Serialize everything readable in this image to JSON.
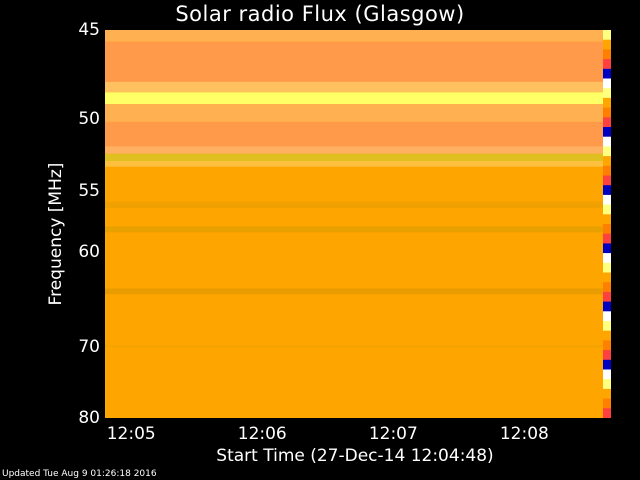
{
  "chart_data": {
    "type": "heatmap",
    "title": "Solar radio Flux (Glasgow)",
    "ylabel": "Frequency [MHz]",
    "xlabel": "Start Time (27-Dec-14 12:04:48)",
    "ylim": [
      45,
      80
    ],
    "yticks": [
      "45",
      "50",
      "55",
      "60",
      "70",
      "80"
    ],
    "ytick_values": [
      45,
      50,
      55,
      60,
      70,
      80
    ],
    "xlim_minutes": [
      4.8,
      8.6
    ],
    "xticks": [
      "12:05",
      "12:06",
      "12:07",
      "12:08"
    ],
    "xtick_minutes": [
      5,
      6,
      7,
      8
    ],
    "background_color": "#ffa500",
    "bands": [
      {
        "f0": 45.0,
        "f1": 45.6,
        "color": "#ffb050"
      },
      {
        "f0": 45.6,
        "f1": 47.8,
        "color": "#ff9a4a"
      },
      {
        "f0": 47.8,
        "f1": 48.4,
        "color": "#ffc060"
      },
      {
        "f0": 48.4,
        "f1": 49.1,
        "color": "#ffff66"
      },
      {
        "f0": 49.1,
        "f1": 50.2,
        "color": "#ffb050"
      },
      {
        "f0": 50.2,
        "f1": 51.8,
        "color": "#ff9a4a"
      },
      {
        "f0": 51.8,
        "f1": 52.3,
        "color": "#ffb060"
      },
      {
        "f0": 52.3,
        "f1": 52.8,
        "color": "#e0c020"
      },
      {
        "f0": 52.8,
        "f1": 53.2,
        "color": "#ffc040"
      },
      {
        "f0": 55.8,
        "f1": 56.3,
        "color": "#f0a000"
      },
      {
        "f0": 57.8,
        "f1": 58.3,
        "color": "#e8a000"
      },
      {
        "f0": 63.5,
        "f1": 64.1,
        "color": "#e89c00"
      },
      {
        "f0": 69.8,
        "f1": 70.1,
        "color": "#f5a300"
      }
    ],
    "updated": "Updated Tue Aug  9 01:26:18 2016"
  }
}
